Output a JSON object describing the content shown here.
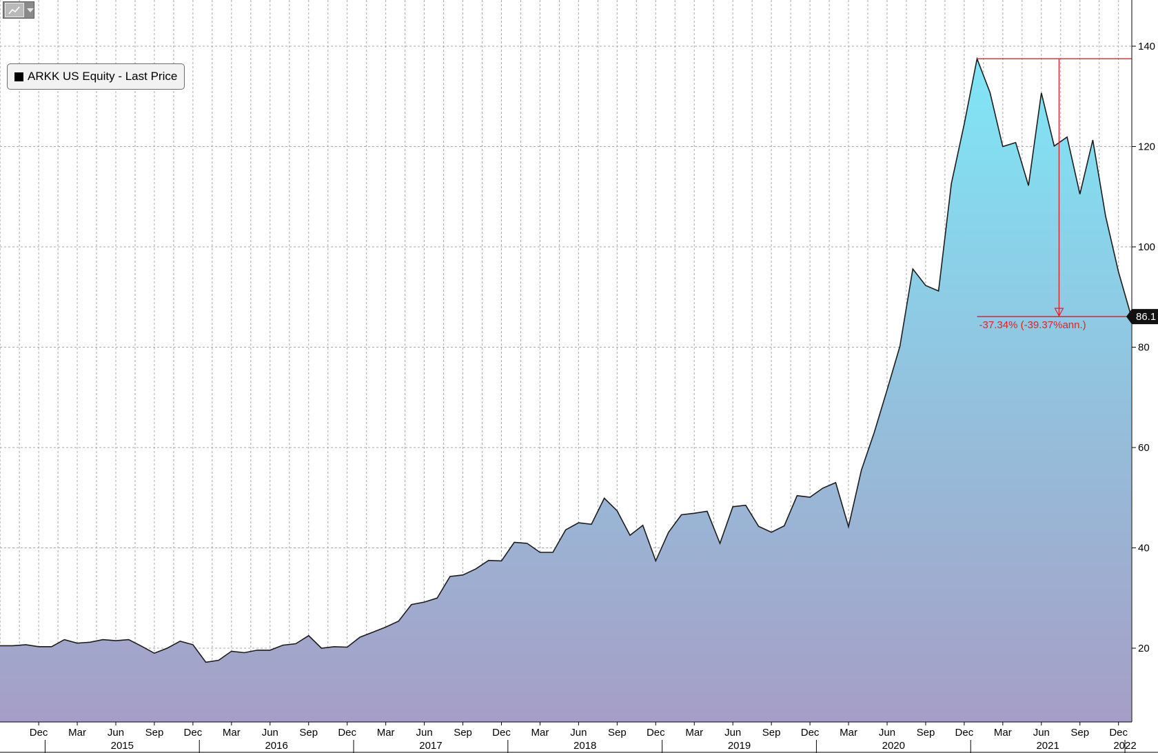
{
  "toolbar": {
    "chart_type_icon": "line-chart-icon",
    "dropdown_icon": "caret-down-icon"
  },
  "legend": {
    "label": "ARKK US Equity - Last Price",
    "swatch_color": "#000000"
  },
  "last_price_tag": "86.1",
  "drawdown_annotation": "-37.34% (-39.37%ann.)",
  "colors": {
    "area_top": "#7fe6f6",
    "area_bottom": "#a69ec6",
    "line": "#1b1b1b",
    "annotation": "#e0202a",
    "grid": "#a8a8a8",
    "price_tag_bg": "#111111"
  },
  "chart_data": {
    "type": "area",
    "title": "",
    "series": [
      {
        "name": "ARKK US Equity - Last Price",
        "x": [
          "2014-10",
          "2014-11",
          "2014-12",
          "2015-01",
          "2015-02",
          "2015-03",
          "2015-04",
          "2015-05",
          "2015-06",
          "2015-07",
          "2015-08",
          "2015-09",
          "2015-10",
          "2015-11",
          "2015-12",
          "2016-01",
          "2016-02",
          "2016-03",
          "2016-04",
          "2016-05",
          "2016-06",
          "2016-07",
          "2016-08",
          "2016-09",
          "2016-10",
          "2016-11",
          "2016-12",
          "2017-01",
          "2017-02",
          "2017-03",
          "2017-04",
          "2017-05",
          "2017-06",
          "2017-07",
          "2017-08",
          "2017-09",
          "2017-10",
          "2017-11",
          "2017-12",
          "2018-01",
          "2018-02",
          "2018-03",
          "2018-04",
          "2018-05",
          "2018-06",
          "2018-07",
          "2018-08",
          "2018-09",
          "2018-10",
          "2018-11",
          "2018-12",
          "2019-01",
          "2019-02",
          "2019-03",
          "2019-04",
          "2019-05",
          "2019-06",
          "2019-07",
          "2019-08",
          "2019-09",
          "2019-10",
          "2019-11",
          "2019-12",
          "2020-01",
          "2020-02",
          "2020-03",
          "2020-04",
          "2020-05",
          "2020-06",
          "2020-07",
          "2020-08",
          "2020-09",
          "2020-10",
          "2020-11",
          "2020-12",
          "2021-01",
          "2021-02",
          "2021-03",
          "2021-04",
          "2021-05",
          "2021-06",
          "2021-07",
          "2021-08",
          "2021-09",
          "2021-10",
          "2021-11",
          "2021-12",
          "2022-01"
        ],
        "values": [
          20.5,
          20.7,
          20.3,
          20.3,
          21.7,
          21.0,
          21.2,
          21.7,
          21.5,
          21.7,
          20.4,
          19.0,
          20.0,
          21.4,
          20.7,
          17.2,
          17.6,
          19.4,
          19.1,
          19.6,
          19.6,
          20.6,
          20.9,
          22.5,
          20.0,
          20.3,
          20.2,
          22.2,
          23.2,
          24.2,
          25.4,
          28.7,
          29.2,
          30.0,
          34.3,
          34.6,
          35.8,
          37.5,
          37.4,
          41.1,
          40.9,
          39.1,
          39.1,
          43.6,
          45.0,
          44.7,
          49.9,
          47.4,
          42.5,
          44.5,
          37.4,
          43.1,
          46.6,
          46.9,
          47.3,
          40.9,
          48.2,
          48.5,
          44.3,
          43.1,
          44.4,
          50.4,
          50.1,
          51.9,
          53.0,
          44.2,
          55.5,
          63.0,
          71.5,
          80.2,
          95.6,
          92.3,
          91.2,
          112.6,
          124.5,
          137.5,
          130.8,
          120.0,
          120.8,
          112.2,
          130.7,
          120.1,
          121.9,
          110.5,
          121.3,
          106.1,
          95.0,
          86.1
        ]
      }
    ],
    "y_ticks": [
      20,
      40,
      60,
      80,
      100,
      120,
      140
    ],
    "y_tick_labels": [
      "20",
      "40",
      "60",
      "80",
      "100",
      "120",
      "140"
    ],
    "ylim": [
      5,
      148
    ],
    "x_month_ticks": [
      {
        "date": "2014-12",
        "label": "Dec"
      },
      {
        "date": "2015-03",
        "label": "Mar"
      },
      {
        "date": "2015-06",
        "label": "Jun"
      },
      {
        "date": "2015-09",
        "label": "Sep"
      },
      {
        "date": "2015-12",
        "label": "Dec"
      },
      {
        "date": "2016-03",
        "label": "Mar"
      },
      {
        "date": "2016-06",
        "label": "Jun"
      },
      {
        "date": "2016-09",
        "label": "Sep"
      },
      {
        "date": "2016-12",
        "label": "Dec"
      },
      {
        "date": "2017-03",
        "label": "Mar"
      },
      {
        "date": "2017-06",
        "label": "Jun"
      },
      {
        "date": "2017-09",
        "label": "Sep"
      },
      {
        "date": "2017-12",
        "label": "Dec"
      },
      {
        "date": "2018-03",
        "label": "Mar"
      },
      {
        "date": "2018-06",
        "label": "Jun"
      },
      {
        "date": "2018-09",
        "label": "Sep"
      },
      {
        "date": "2018-12",
        "label": "Dec"
      },
      {
        "date": "2019-03",
        "label": "Mar"
      },
      {
        "date": "2019-06",
        "label": "Jun"
      },
      {
        "date": "2019-09",
        "label": "Sep"
      },
      {
        "date": "2019-12",
        "label": "Dec"
      },
      {
        "date": "2020-03",
        "label": "Mar"
      },
      {
        "date": "2020-06",
        "label": "Jun"
      },
      {
        "date": "2020-09",
        "label": "Sep"
      },
      {
        "date": "2020-12",
        "label": "Dec"
      },
      {
        "date": "2021-03",
        "label": "Mar"
      },
      {
        "date": "2021-06",
        "label": "Jun"
      },
      {
        "date": "2021-09",
        "label": "Sep"
      },
      {
        "date": "2021-12",
        "label": "Dec"
      }
    ],
    "x_year_labels": [
      {
        "label": "2015",
        "center": "2015-07"
      },
      {
        "label": "2016",
        "center": "2016-07"
      },
      {
        "label": "2017",
        "center": "2017-07"
      },
      {
        "label": "2018",
        "center": "2018-07"
      },
      {
        "label": "2019",
        "center": "2019-07"
      },
      {
        "label": "2020",
        "center": "2020-07"
      },
      {
        "label": "2021",
        "center": "2021-07"
      },
      {
        "label": "2022",
        "center": "2022-01"
      }
    ],
    "x_year_boundaries": [
      "2015-01",
      "2016-01",
      "2017-01",
      "2018-01",
      "2019-01",
      "2020-01",
      "2021-01",
      "2022-01"
    ],
    "drawdown": {
      "peak_date": "2021-01",
      "peak_value": 137.5,
      "end_date": "2022-01",
      "end_value": 86.1,
      "marker_date": "2021-07"
    },
    "grid": true,
    "legend_position": "top-left"
  }
}
